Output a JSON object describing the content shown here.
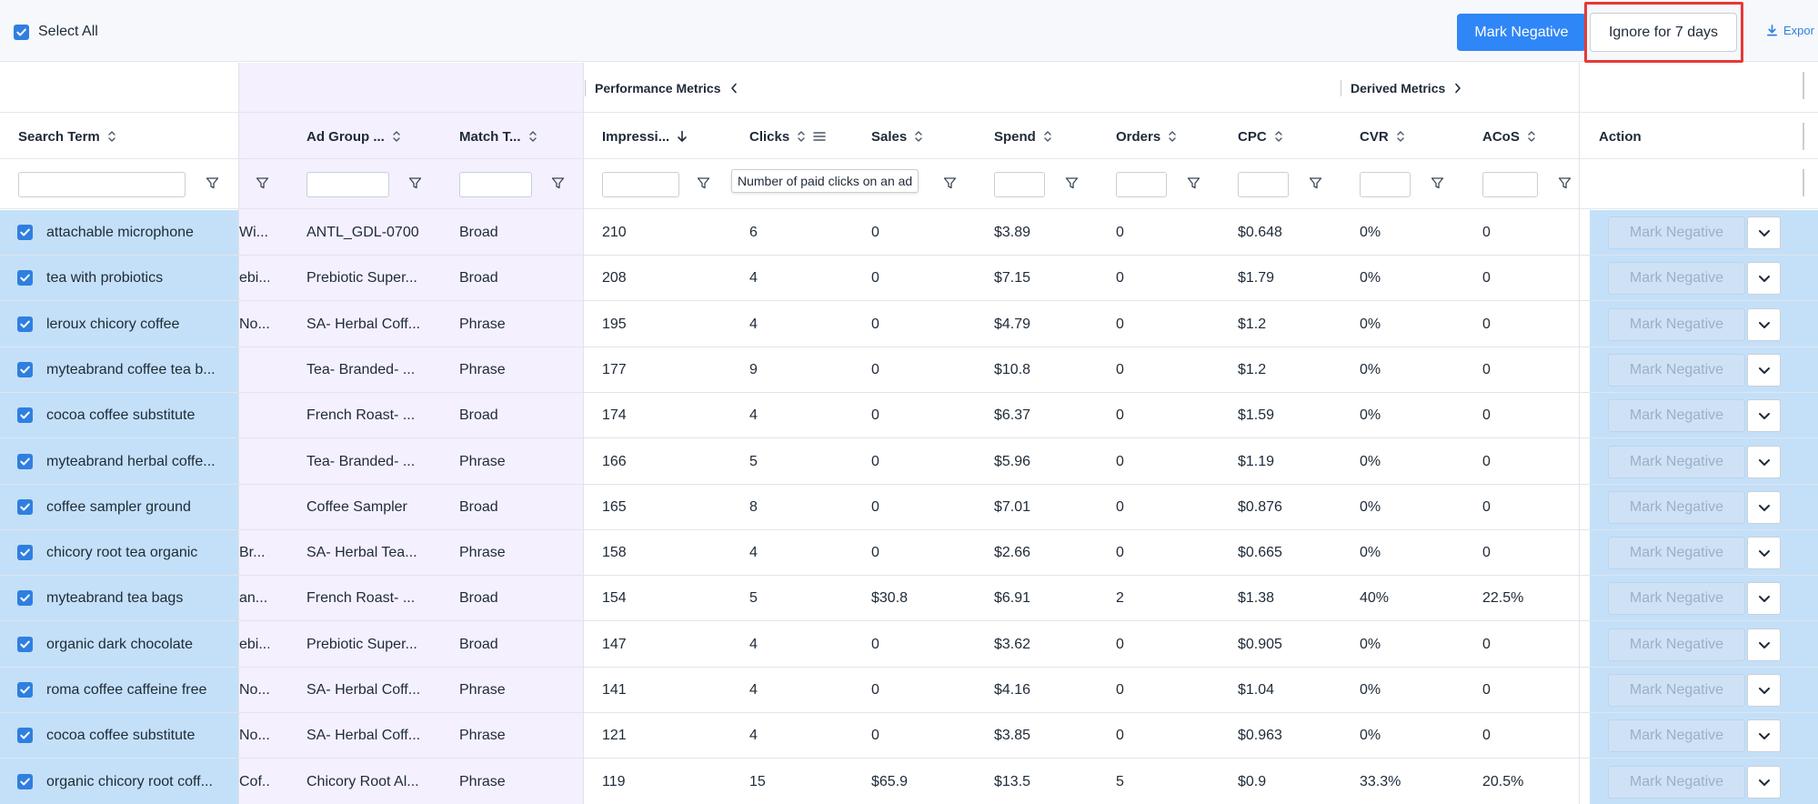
{
  "toolbar": {
    "select_all_label": "Select All",
    "mark_negative_label": "Mark Negative",
    "ignore_label": "Ignore for 7 days",
    "export_label": "Expor"
  },
  "groups": {
    "performance": "Performance Metrics",
    "derived": "Derived Metrics"
  },
  "columns": {
    "search_term": "Search Term",
    "ad_group": "Ad Group ...",
    "match_type": "Match T...",
    "impressions": "Impressi...",
    "clicks": "Clicks",
    "sales": "Sales",
    "spend": "Spend",
    "orders": "Orders",
    "cpc": "CPC",
    "cvr": "CVR",
    "acos": "ACoS",
    "action": "Action"
  },
  "tooltip": "Number of paid clicks on an ad",
  "row_action_label": "Mark Negative",
  "rows": [
    {
      "term": "attachable microphone",
      "campaign": "Wi...",
      "ad_group": "ANTL_GDL-0700",
      "match": "Broad",
      "impressions": "210",
      "clicks": "6",
      "sales": "0",
      "spend": "$3.89",
      "orders": "0",
      "cpc": "$0.648",
      "cvr": "0%",
      "acos": "0"
    },
    {
      "term": "tea with probiotics",
      "campaign": "ebi...",
      "ad_group": "Prebiotic Super...",
      "match": "Broad",
      "impressions": "208",
      "clicks": "4",
      "sales": "0",
      "spend": "$7.15",
      "orders": "0",
      "cpc": "$1.79",
      "cvr": "0%",
      "acos": "0"
    },
    {
      "term": "leroux chicory coffee",
      "campaign": "No...",
      "ad_group": "SA- Herbal Coff...",
      "match": "Phrase",
      "impressions": "195",
      "clicks": "4",
      "sales": "0",
      "spend": "$4.79",
      "orders": "0",
      "cpc": "$1.2",
      "cvr": "0%",
      "acos": "0"
    },
    {
      "term": "myteabrand coffee tea b...",
      "campaign": "",
      "ad_group": "Tea- Branded- ...",
      "match": "Phrase",
      "impressions": "177",
      "clicks": "9",
      "sales": "0",
      "spend": "$10.8",
      "orders": "0",
      "cpc": "$1.2",
      "cvr": "0%",
      "acos": "0"
    },
    {
      "term": "cocoa coffee substitute",
      "campaign": "",
      "ad_group": "French Roast- ...",
      "match": "Broad",
      "impressions": "174",
      "clicks": "4",
      "sales": "0",
      "spend": "$6.37",
      "orders": "0",
      "cpc": "$1.59",
      "cvr": "0%",
      "acos": "0"
    },
    {
      "term": "myteabrand herbal coffe...",
      "campaign": "",
      "ad_group": "Tea- Branded- ...",
      "match": "Phrase",
      "impressions": "166",
      "clicks": "5",
      "sales": "0",
      "spend": "$5.96",
      "orders": "0",
      "cpc": "$1.19",
      "cvr": "0%",
      "acos": "0"
    },
    {
      "term": "coffee sampler ground",
      "campaign": "",
      "ad_group": "Coffee Sampler",
      "match": "Broad",
      "impressions": "165",
      "clicks": "8",
      "sales": "0",
      "spend": "$7.01",
      "orders": "0",
      "cpc": "$0.876",
      "cvr": "0%",
      "acos": "0"
    },
    {
      "term": "chicory root tea organic",
      "campaign": "Br...",
      "ad_group": "SA- Herbal Tea...",
      "match": "Phrase",
      "impressions": "158",
      "clicks": "4",
      "sales": "0",
      "spend": "$2.66",
      "orders": "0",
      "cpc": "$0.665",
      "cvr": "0%",
      "acos": "0"
    },
    {
      "term": "myteabrand tea bags",
      "campaign": "an...",
      "ad_group": "French Roast- ...",
      "match": "Broad",
      "impressions": "154",
      "clicks": "5",
      "sales": "$30.8",
      "spend": "$6.91",
      "orders": "2",
      "cpc": "$1.38",
      "cvr": "40%",
      "acos": "22.5%"
    },
    {
      "term": "organic dark chocolate",
      "campaign": "ebi...",
      "ad_group": "Prebiotic Super...",
      "match": "Broad",
      "impressions": "147",
      "clicks": "4",
      "sales": "0",
      "spend": "$3.62",
      "orders": "0",
      "cpc": "$0.905",
      "cvr": "0%",
      "acos": "0"
    },
    {
      "term": "roma coffee caffeine free",
      "campaign": "No...",
      "ad_group": "SA- Herbal Coff...",
      "match": "Phrase",
      "impressions": "141",
      "clicks": "4",
      "sales": "0",
      "spend": "$4.16",
      "orders": "0",
      "cpc": "$1.04",
      "cvr": "0%",
      "acos": "0"
    },
    {
      "term": "cocoa coffee substitute",
      "campaign": "No...",
      "ad_group": "SA- Herbal Coff...",
      "match": "Phrase",
      "impressions": "121",
      "clicks": "4",
      "sales": "0",
      "spend": "$3.85",
      "orders": "0",
      "cpc": "$0.963",
      "cvr": "0%",
      "acos": "0"
    },
    {
      "term": "organic chicory root coff...",
      "campaign": "Cof...",
      "ad_group": "Chicory Root Al...",
      "match": "Phrase",
      "impressions": "119",
      "clicks": "15",
      "sales": "$65.9",
      "spend": "$13.5",
      "orders": "5",
      "cpc": "$0.9",
      "cvr": "33.3%",
      "acos": "20.5%"
    }
  ]
}
